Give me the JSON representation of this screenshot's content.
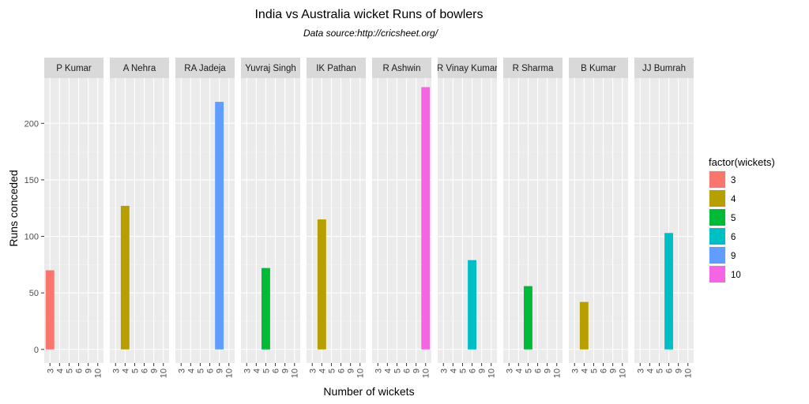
{
  "chart_data": {
    "type": "bar",
    "title": "India vs Australia wicket Runs of bowlers",
    "subtitle": "Data source:http://cricsheet.org/",
    "xlabel": "Number of wickets",
    "ylabel": "Runs conceded",
    "x_categories": [
      "3",
      "4",
      "5",
      "6",
      "9",
      "10"
    ],
    "ylim": [
      -12,
      240
    ],
    "yticks": [
      0,
      50,
      100,
      150,
      200
    ],
    "grid": true,
    "facets": [
      {
        "label": "P Kumar",
        "wickets": "3",
        "runs": 70
      },
      {
        "label": "A Nehra",
        "wickets": "4",
        "runs": 127
      },
      {
        "label": "RA Jadeja",
        "wickets": "9",
        "runs": 219
      },
      {
        "label": "Yuvraj Singh",
        "wickets": "5",
        "runs": 72
      },
      {
        "label": "IK Pathan",
        "wickets": "4",
        "runs": 115
      },
      {
        "label": "R Ashwin",
        "wickets": "10",
        "runs": 232
      },
      {
        "label": "R Vinay Kumar",
        "wickets": "6",
        "runs": 79
      },
      {
        "label": "R Sharma",
        "wickets": "5",
        "runs": 56
      },
      {
        "label": "B Kumar",
        "wickets": "4",
        "runs": 42
      },
      {
        "label": "JJ Bumrah",
        "wickets": "6",
        "runs": 103
      }
    ],
    "legend": {
      "title": "factor(wickets)",
      "placement": "right",
      "entries": [
        {
          "label": "3",
          "color": "#F8766D"
        },
        {
          "label": "4",
          "color": "#B79F00"
        },
        {
          "label": "5",
          "color": "#00BA38"
        },
        {
          "label": "6",
          "color": "#00BFC4"
        },
        {
          "label": "9",
          "color": "#619CFF"
        },
        {
          "label": "10",
          "color": "#F564E3"
        }
      ]
    }
  }
}
